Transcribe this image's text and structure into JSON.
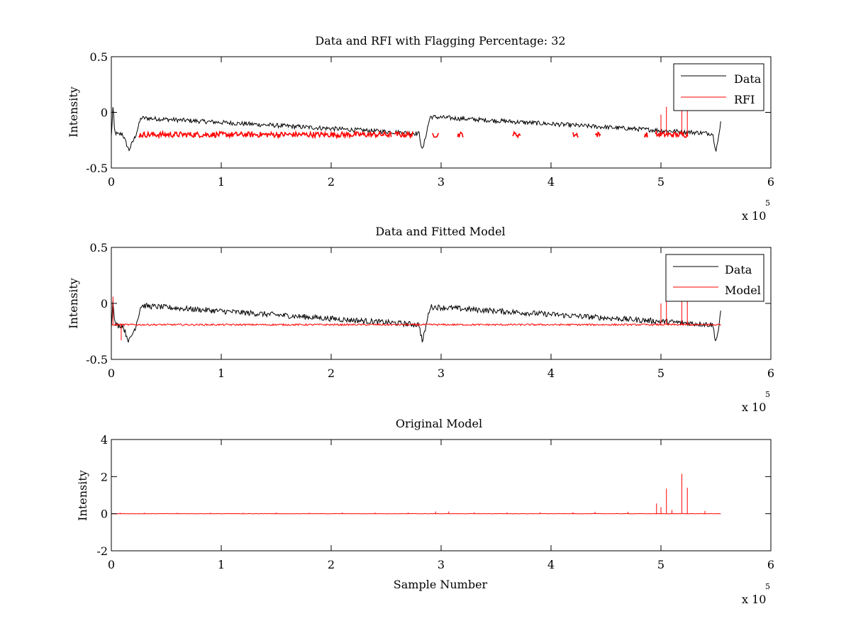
{
  "chart_data": [
    {
      "type": "line",
      "title": "Data and RFI with Flagging Percentage: 32",
      "xlabel": "",
      "ylabel": "Intensity",
      "xlim": [
        0,
        600000
      ],
      "ylim": [
        -0.5,
        0.5
      ],
      "xticks": [
        0,
        100000,
        200000,
        300000,
        400000,
        500000,
        600000
      ],
      "xtick_labels": [
        "0",
        "1",
        "2",
        "3",
        "4",
        "5",
        "6"
      ],
      "yticks": [
        -0.5,
        0,
        0.5
      ],
      "ytick_labels": [
        "-0.5",
        "0",
        "0.5"
      ],
      "x_multiplier": {
        "base": "x 10",
        "exponent": "5"
      },
      "grid": false,
      "legend_position": "top-right",
      "series": [
        {
          "name": "Data",
          "color": "#000000",
          "base": -0.19,
          "noise": 0.02,
          "x": [
            0,
            1500,
            3000,
            6000,
            10000,
            16000,
            22000,
            27000,
            280000,
            283000,
            286000,
            290000,
            547000,
            550000,
            553000,
            555000
          ],
          "y": [
            -0.22,
            0.06,
            -0.18,
            -0.2,
            -0.19,
            -0.34,
            -0.21,
            -0.05,
            -0.19,
            -0.35,
            -0.21,
            -0.04,
            -0.19,
            -0.34,
            -0.2,
            -0.04
          ]
        },
        {
          "name": "RFI",
          "color": "#ff0000",
          "base": -0.2,
          "noise": 0.025,
          "segments": [
            [
              25000,
              255000
            ],
            [
              258000,
              275000
            ],
            [
              292000,
              298000
            ],
            [
              315000,
              320000
            ],
            [
              365000,
              372000
            ],
            [
              420000,
              425000
            ],
            [
              440000,
              445000
            ],
            [
              485000,
              488000
            ],
            [
              495000,
              525000
            ]
          ],
          "spikes": [
            [
              500000,
              -0.02
            ],
            [
              505000,
              0.05
            ],
            [
              519000,
              0.02
            ],
            [
              524000,
              0.03
            ]
          ]
        }
      ]
    },
    {
      "type": "line",
      "title": "Data and Fitted Model",
      "xlabel": "",
      "ylabel": "Intensity",
      "xlim": [
        0,
        600000
      ],
      "ylim": [
        -0.5,
        0.5
      ],
      "xticks": [
        0,
        100000,
        200000,
        300000,
        400000,
        500000,
        600000
      ],
      "xtick_labels": [
        "0",
        "1",
        "2",
        "3",
        "4",
        "5",
        "6"
      ],
      "yticks": [
        -0.5,
        0,
        0.5
      ],
      "ytick_labels": [
        "-0.5",
        "0",
        "0.5"
      ],
      "x_multiplier": {
        "base": "x 10",
        "exponent": "5"
      },
      "grid": false,
      "legend_position": "top-right",
      "series": [
        {
          "name": "Data",
          "color": "#000000",
          "base": -0.2,
          "noise": 0.025,
          "x": [
            0,
            1500,
            3000,
            6000,
            10000,
            16000,
            22000,
            27000,
            280000,
            283000,
            286000,
            290000,
            547000,
            550000,
            553000,
            555000
          ],
          "y": [
            -0.22,
            0.06,
            -0.18,
            -0.2,
            -0.19,
            -0.34,
            -0.21,
            -0.02,
            -0.19,
            -0.35,
            -0.21,
            -0.03,
            -0.19,
            -0.34,
            -0.2,
            -0.03
          ]
        },
        {
          "name": "Model",
          "color": "#ff0000",
          "base": -0.19,
          "noise": 0.008,
          "spikes": [
            [
              1500,
              0.06
            ],
            [
              9000,
              -0.33
            ],
            [
              500000,
              0.0
            ],
            [
              505000,
              0.07
            ],
            [
              519000,
              0.04
            ],
            [
              524000,
              0.06
            ]
          ]
        }
      ]
    },
    {
      "type": "line",
      "title": "Original Model",
      "xlabel": "Sample Number",
      "ylabel": "Intensity",
      "xlim": [
        0,
        600000
      ],
      "ylim": [
        -2,
        4
      ],
      "xticks": [
        0,
        100000,
        200000,
        300000,
        400000,
        500000,
        600000
      ],
      "xtick_labels": [
        "0",
        "1",
        "2",
        "3",
        "4",
        "5",
        "6"
      ],
      "yticks": [
        -2,
        0,
        2,
        4
      ],
      "ytick_labels": [
        "-2",
        "0",
        "2",
        "4"
      ],
      "x_multiplier": {
        "base": "x 10",
        "exponent": "5"
      },
      "grid": false,
      "legend_position": "none",
      "series": [
        {
          "name": "",
          "color": "#ff0000",
          "base": 0,
          "noise": 0.01,
          "spikes": [
            [
              8000,
              0.05
            ],
            [
              30000,
              0.05
            ],
            [
              60000,
              0.05
            ],
            [
              90000,
              0.05
            ],
            [
              120000,
              0.05
            ],
            [
              150000,
              0.06
            ],
            [
              180000,
              0.05
            ],
            [
              210000,
              0.06
            ],
            [
              240000,
              0.06
            ],
            [
              270000,
              0.06
            ],
            [
              295000,
              0.12
            ],
            [
              307000,
              0.12
            ],
            [
              330000,
              0.07
            ],
            [
              360000,
              0.07
            ],
            [
              390000,
              0.07
            ],
            [
              420000,
              0.08
            ],
            [
              440000,
              0.1
            ],
            [
              470000,
              0.1
            ],
            [
              496000,
              0.55
            ],
            [
              500000,
              0.35
            ],
            [
              505000,
              1.35
            ],
            [
              510000,
              0.2
            ],
            [
              519000,
              2.15
            ],
            [
              524000,
              1.4
            ],
            [
              540000,
              0.15
            ]
          ]
        }
      ]
    }
  ]
}
